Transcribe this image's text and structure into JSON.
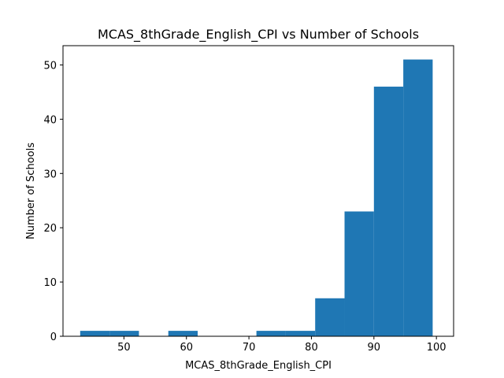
{
  "chart_data": {
    "type": "bar",
    "title": "MCAS_8thGrade_English_CPI vs Number of Schools",
    "xlabel": "MCAS_8thGrade_English_CPI",
    "ylabel": "Number of Schools",
    "xlim": [
      40.25,
      102.75
    ],
    "ylim": [
      0,
      53.55
    ],
    "xticks": [
      50,
      60,
      70,
      80,
      90,
      100
    ],
    "yticks": [
      0,
      10,
      20,
      30,
      40,
      50
    ],
    "bins": [
      {
        "start": 43.0,
        "end": 47.7,
        "count": 1
      },
      {
        "start": 47.7,
        "end": 52.4,
        "count": 1
      },
      {
        "start": 52.4,
        "end": 57.1,
        "count": 0
      },
      {
        "start": 57.1,
        "end": 61.8,
        "count": 1
      },
      {
        "start": 61.8,
        "end": 66.5,
        "count": 0
      },
      {
        "start": 66.5,
        "end": 71.2,
        "count": 0
      },
      {
        "start": 71.2,
        "end": 75.9,
        "count": 1
      },
      {
        "start": 75.9,
        "end": 80.6,
        "count": 1
      },
      {
        "start": 80.6,
        "end": 85.3,
        "count": 7
      },
      {
        "start": 85.3,
        "end": 90.0,
        "count": 23
      },
      {
        "start": 90.0,
        "end": 94.7,
        "count": 46
      },
      {
        "start": 94.7,
        "end": 99.4,
        "count": 51
      }
    ],
    "bar_color": "#1f77b4",
    "grid": false,
    "legend": "none"
  }
}
